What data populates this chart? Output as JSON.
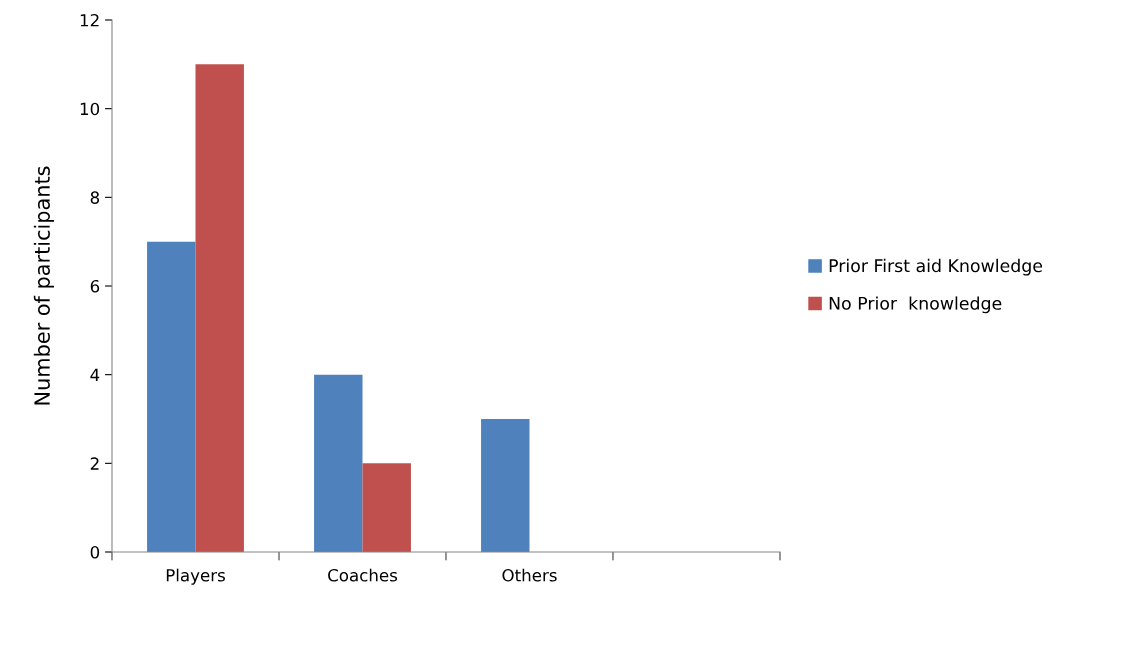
{
  "chart_data": {
    "type": "bar",
    "ylabel": "Number of participants",
    "categories": [
      "Players",
      "Coaches",
      "Others",
      null
    ],
    "series": [
      {
        "name": "Prior First aid Knowledge",
        "color": "#4f81bd",
        "values": [
          7,
          4,
          3,
          null
        ]
      },
      {
        "name": "No Prior  knowledge",
        "color": "#c0504d",
        "values": [
          11,
          2,
          0,
          null
        ]
      }
    ],
    "ylim": [
      0,
      12
    ],
    "yticks": [
      0,
      2,
      4,
      6,
      8,
      10,
      12
    ],
    "grid": false,
    "legend": "right"
  }
}
